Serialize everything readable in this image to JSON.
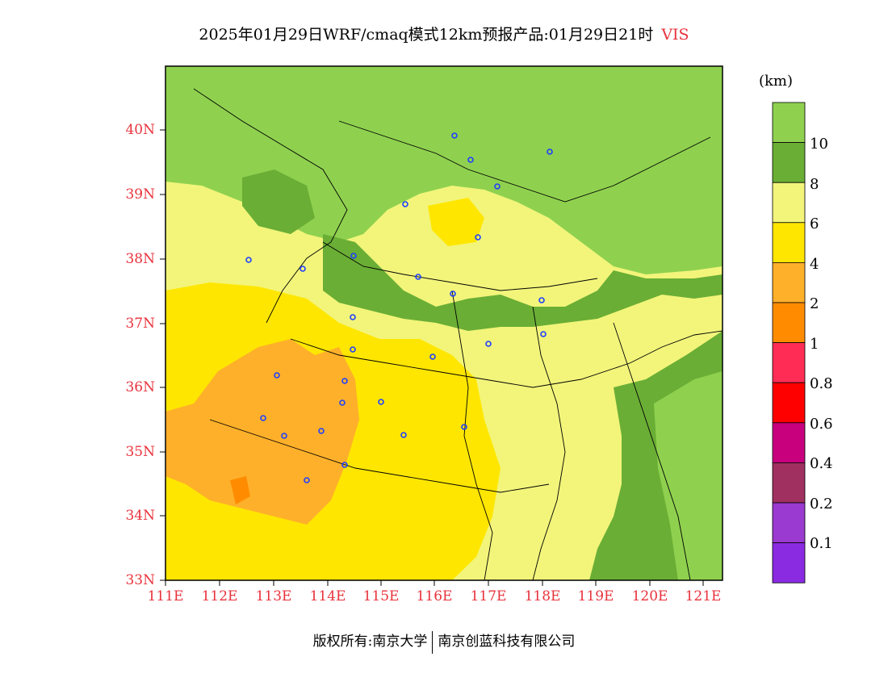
{
  "title": {
    "main": "2025年01月29日WRF/cmaq模式12km预报产品:01月29日21时",
    "variable": "VIS"
  },
  "unit_label": "(km)",
  "axes": {
    "lat_ticks": [
      "40N",
      "39N",
      "38N",
      "37N",
      "36N",
      "35N",
      "34N",
      "33N"
    ],
    "lon_ticks": [
      "111E",
      "112E",
      "113E",
      "114E",
      "115E",
      "116E",
      "117E",
      "118E",
      "119E",
      "120E",
      "121E"
    ]
  },
  "colorbar": {
    "colors": [
      "#8fd14f",
      "#6aae35",
      "#f2f57a",
      "#ffe600",
      "#ffb02a",
      "#ff8c00",
      "#ff2d55",
      "#ff0000",
      "#c8007e",
      "#a03060",
      "#9a3ad0",
      "#8a2be2"
    ],
    "labels": [
      "10",
      "8",
      "6",
      "4",
      "2",
      "1",
      "0.8",
      "0.6",
      "0.4",
      "0.2",
      "0.1"
    ]
  },
  "copyright": {
    "left": "版权所有:南京大学",
    "right": "南京创蓝科技有限公司"
  },
  "chart_data": {
    "type": "heatmap",
    "title": "2025年01月29日WRF/cmaq模式12km预报产品:01月29日21时 VIS",
    "xlabel": "",
    "ylabel": "",
    "xlim": [
      111,
      121.4
    ],
    "ylim": [
      33,
      41
    ],
    "x_ticks": [
      "111E",
      "112E",
      "113E",
      "114E",
      "115E",
      "116E",
      "117E",
      "118E",
      "119E",
      "120E",
      "121E"
    ],
    "y_ticks": [
      "33N",
      "34N",
      "35N",
      "36N",
      "37N",
      "38N",
      "39N",
      "40N"
    ],
    "legend_unit": "(km)",
    "levels": [
      "10",
      "8",
      "6",
      "4",
      "2",
      "1",
      "0.8",
      "0.6",
      "0.4",
      "0.2",
      "0.1"
    ]
  }
}
